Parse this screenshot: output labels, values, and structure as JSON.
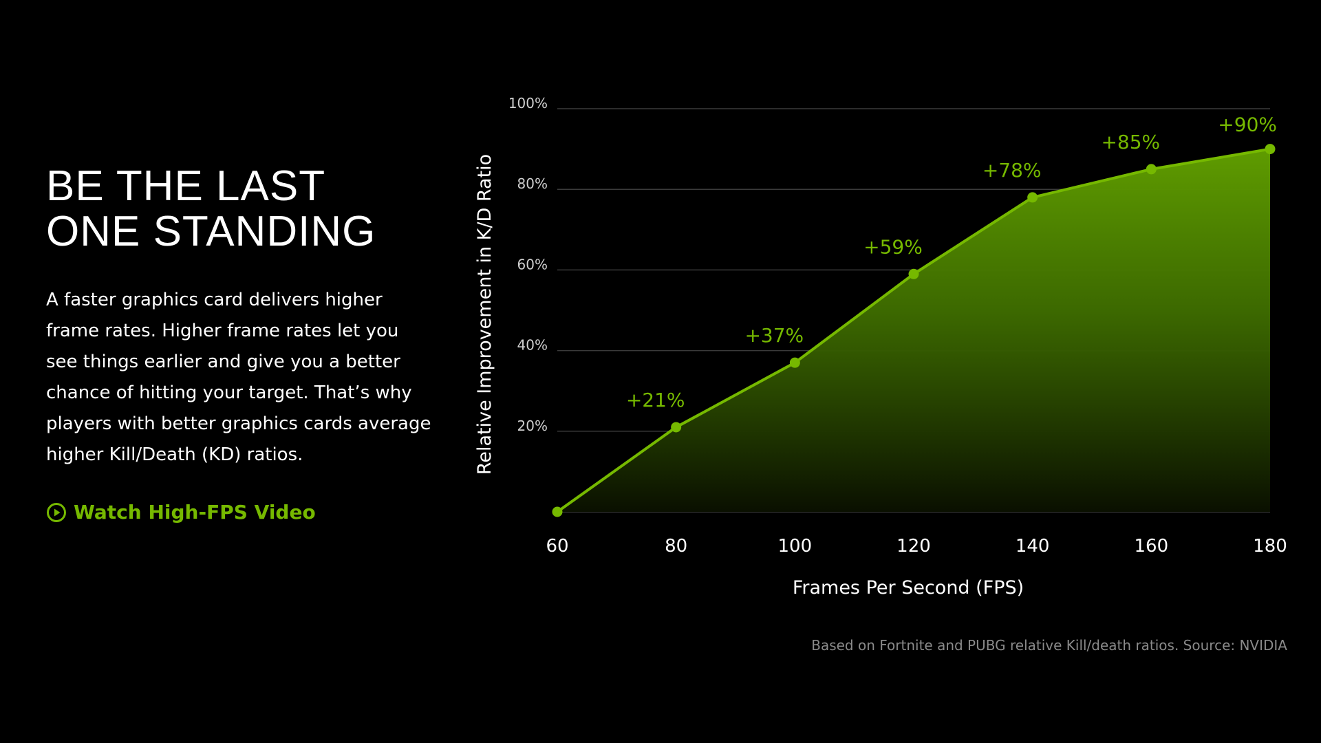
{
  "headline": {
    "line1": "BE THE LAST",
    "line2": "ONE STANDING"
  },
  "body": "A faster graphics card delivers higher frame rates. Higher frame rates let you see things earlier and give you a better chance of hitting your target. That’s why players with better graphics cards average higher Kill/Death (KD) ratios.",
  "cta": {
    "label": "Watch High-FPS Video",
    "icon": "play-circle-icon"
  },
  "source_note": "Based on Fortnite and PUBG relative Kill/death ratios. Source: NVIDIA",
  "colors": {
    "accent": "#76b900",
    "background": "#000000",
    "gridline": "#3a3a3a",
    "note": "#8a8a8a"
  },
  "chart_data": {
    "type": "area",
    "x": [
      60,
      80,
      100,
      120,
      140,
      160,
      180
    ],
    "values": [
      0,
      21,
      37,
      59,
      78,
      85,
      90
    ],
    "data_labels": [
      "",
      "+21%",
      "+37%",
      "+59%",
      "+78%",
      "+85%",
      "+90%"
    ],
    "xlabel": "Frames Per Second (FPS)",
    "ylabel": "Relative Improvement in K/D Ratio",
    "xticks": [
      "60",
      "80",
      "100",
      "120",
      "140",
      "160",
      "180"
    ],
    "yticks": [
      {
        "value": 20,
        "label": "20%"
      },
      {
        "value": 40,
        "label": "40%"
      },
      {
        "value": 60,
        "label": "60%"
      },
      {
        "value": 80,
        "label": "80%"
      },
      {
        "value": 100,
        "label": "100%"
      }
    ],
    "xlim": [
      60,
      180
    ],
    "ylim": [
      0,
      100
    ],
    "grid": true
  }
}
